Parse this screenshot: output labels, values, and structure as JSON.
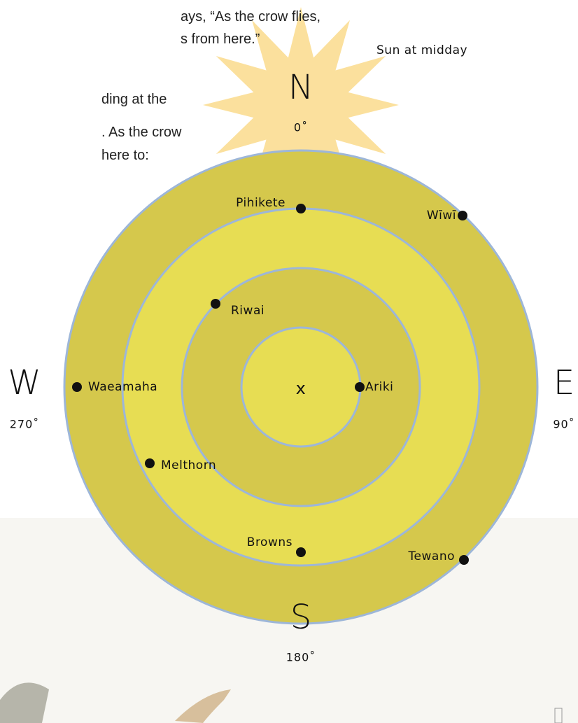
{
  "text_lines": [
    "ays, “As the crow flies,",
    "s from here.”",
    "ding at the",
    ". As the crow",
    "here to:"
  ],
  "sun_label": "Sun at midday",
  "compass": [
    {
      "letter": "N",
      "degrees": "0˚"
    },
    {
      "letter": "E",
      "degrees": "90˚"
    },
    {
      "letter": "S",
      "degrees": "180˚"
    },
    {
      "letter": "W",
      "degrees": "270˚"
    }
  ],
  "center": "x",
  "places": [
    "Pihikete",
    "Wīwī",
    "Riwai",
    "Waeamaha",
    "Ariki",
    "Melthorn",
    "Browns",
    "Tewano"
  ]
}
